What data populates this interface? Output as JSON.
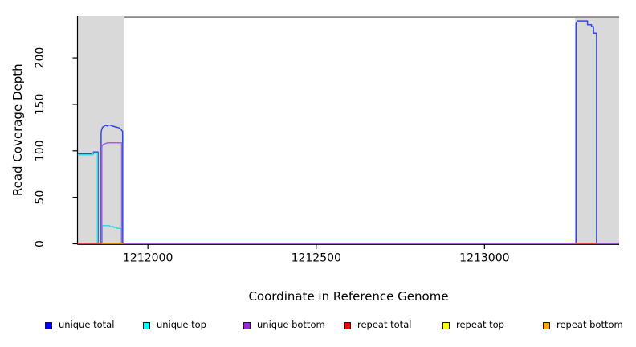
{
  "chart_data": {
    "type": "line",
    "title": "",
    "xlabel": "Coordinate in Reference Genome",
    "ylabel": "Read Coverage Depth",
    "xlim": [
      1211792,
      1213400
    ],
    "ylim": [
      0,
      245
    ],
    "x_ticks": [
      1212000,
      1212500,
      1213000
    ],
    "x_tick_labels": [
      "1212000",
      "1212500",
      "1213000"
    ],
    "y_ticks": [
      0,
      50,
      100,
      150,
      200
    ],
    "y_tick_labels": [
      "0",
      "50",
      "100",
      "150",
      "200"
    ],
    "grid": false,
    "legend_position": "bottom",
    "plot_bg": "#ffffff",
    "shaded_regions": [
      {
        "name": "repeat-region-left",
        "x0": 1211792,
        "x1": 1211930,
        "color": "#d9d9d9"
      },
      {
        "name": "repeat-region-right",
        "x0": 1213269,
        "x1": 1213400,
        "color": "#d9d9d9"
      }
    ],
    "boundary_line": {
      "name": "reference-boundary-line",
      "x0": 1211930,
      "x1": 1213400,
      "y": 244,
      "color": "#8a8a8a"
    },
    "series": [
      {
        "name": "unique total",
        "color": "#0000ff",
        "stroke": "#2e46ee",
        "segments": [
          [
            [
              1211792,
              96
            ],
            [
              1211838,
              96
            ],
            [
              1211838,
              98
            ],
            [
              1211852,
              98
            ],
            [
              1211852,
              0
            ],
            [
              1211861,
              0
            ],
            [
              1211861,
              119
            ],
            [
              1211863,
              123
            ],
            [
              1211866,
              125
            ],
            [
              1211871,
              126
            ],
            [
              1211875,
              127
            ],
            [
              1211879,
              126
            ],
            [
              1211882,
              127
            ],
            [
              1211888,
              127
            ],
            [
              1211895,
              126
            ],
            [
              1211905,
              125
            ],
            [
              1211915,
              124
            ],
            [
              1211921,
              122
            ],
            [
              1211925,
              120
            ],
            [
              1211925,
              0
            ],
            [
              1213272,
              0
            ],
            [
              1213272,
              236
            ],
            [
              1213276,
              239
            ],
            [
              1213306,
              239
            ],
            [
              1213306,
              235
            ],
            [
              1213318,
              235
            ],
            [
              1213318,
              233
            ],
            [
              1213324,
              233
            ],
            [
              1213324,
              226
            ],
            [
              1213333,
              226
            ],
            [
              1213333,
              0
            ],
            [
              1213400,
              0
            ]
          ]
        ]
      },
      {
        "name": "unique top",
        "color": "#00ffff",
        "stroke": "#3cd7e6",
        "segments": [
          [
            [
              1211792,
              95
            ],
            [
              1211836,
              95
            ],
            [
              1211836,
              97
            ],
            [
              1211850,
              97
            ],
            [
              1211850,
              0
            ]
          ],
          [
            [
              1211864,
              0
            ],
            [
              1211864,
              19
            ],
            [
              1211886,
              19
            ],
            [
              1211886,
              18
            ],
            [
              1211898,
              18
            ],
            [
              1211898,
              17
            ],
            [
              1211908,
              17
            ],
            [
              1211908,
              16
            ],
            [
              1211918,
              16
            ],
            [
              1211921,
              15
            ],
            [
              1211921,
              0
            ]
          ]
        ]
      },
      {
        "name": "unique bottom",
        "color": "#a020f0",
        "stroke": "#a160e6",
        "segments": [
          [
            [
              1211792,
              0
            ],
            [
              1211863,
              0
            ],
            [
              1211863,
              104
            ],
            [
              1211867,
              106
            ],
            [
              1211873,
              107
            ],
            [
              1211880,
              108
            ],
            [
              1211922,
              108
            ],
            [
              1211922,
              0
            ],
            [
              1213400,
              0
            ]
          ]
        ]
      },
      {
        "name": "repeat total",
        "color": "#ff0000",
        "stroke": "#ef4958",
        "segments": [
          [
            [
              1211792,
              0
            ],
            [
              1211926,
              0
            ]
          ],
          [
            [
              1213270,
              0
            ],
            [
              1213335,
              0
            ]
          ]
        ]
      },
      {
        "name": "repeat top",
        "color": "#ffff00",
        "stroke": "#ffee33",
        "segments": [
          [
            [
              1211862,
              0
            ],
            [
              1211926,
              0
            ]
          ]
        ]
      },
      {
        "name": "repeat bottom",
        "color": "#ffa500",
        "stroke": "#ff9f1a",
        "segments": [
          [
            [
              1211862,
              0
            ],
            [
              1211926,
              0
            ]
          ]
        ]
      }
    ]
  },
  "legend": {
    "items": [
      {
        "label": "unique total",
        "color": "#0000ff"
      },
      {
        "label": "unique top",
        "color": "#00ffff"
      },
      {
        "label": "unique bottom",
        "color": "#a020f0"
      },
      {
        "label": "repeat total",
        "color": "#ff0000"
      },
      {
        "label": "repeat top",
        "color": "#ffff00"
      },
      {
        "label": "repeat bottom",
        "color": "#ffa500"
      }
    ]
  }
}
